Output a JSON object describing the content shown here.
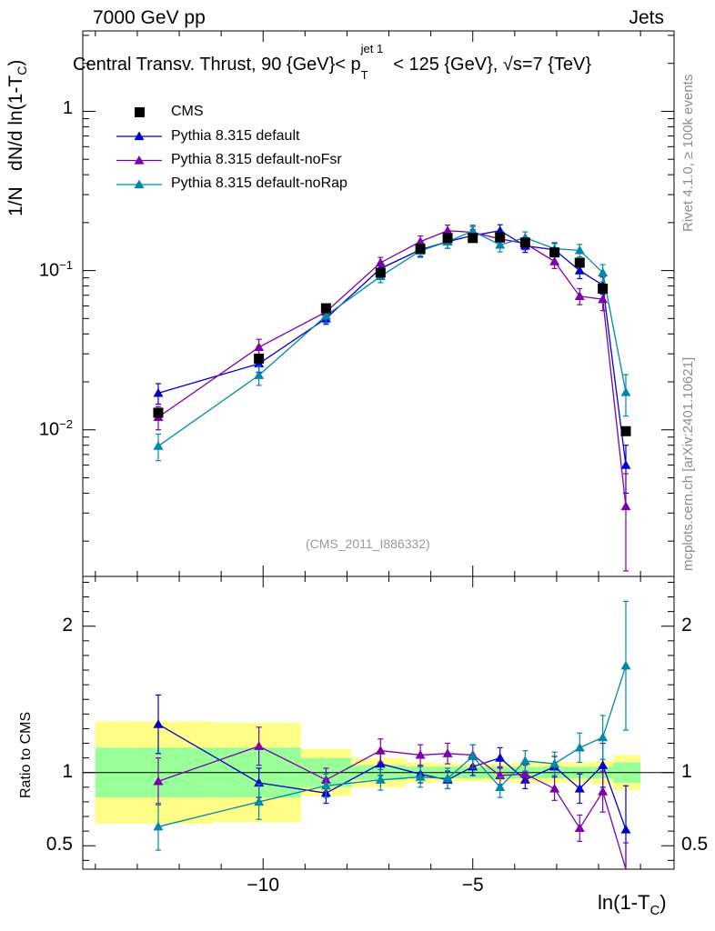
{
  "header": {
    "left": "7000 GeV pp",
    "right": "Jets"
  },
  "title": {
    "main_prefix": "Central Transv. Thrust, 90 {GeV}< p",
    "sub": "T",
    "sup": "jet 1",
    "main_suffix": " < 125 {GeV}, √s=7 {TeV}"
  },
  "side_labels": {
    "rivet": "Rivet 4.1.0, ≥ 100k events",
    "mcplots": "mcplots.cern.ch [arXiv:2401.10621]"
  },
  "analysis_tag": "(CMS_2011_I886332)",
  "colors": {
    "cms": "#000000",
    "default": "#0000cc",
    "noFsr": "#7f00aa",
    "noRap": "#0088aa",
    "band_inner": "#99ff99",
    "band_outer": "#ffff88"
  },
  "chart_data": {
    "type": "line",
    "title": "Central Transv. Thrust, 90 {GeV}< p_T^{jet 1} < 125 {GeV}, √s=7 {TeV}",
    "xlabel": "ln(1-T_C)",
    "ylabel": "1/N   dN/d ln(1-T_C)",
    "ratio_ylabel": "Ratio to CMS",
    "xlim": [
      -14.3,
      -0.2
    ],
    "ylim": [
      0.0012,
      3.2
    ],
    "yscale": "log",
    "ratio_ylim": [
      0.34,
      2.34
    ],
    "x_ticks": [
      "−10",
      "−5"
    ],
    "y_ticks": [
      "10^{-2}",
      "10^{-1}",
      "1"
    ],
    "ratio_ticks": [
      "0.5",
      "1",
      "2"
    ],
    "legend": [
      "CMS",
      "Pythia 8.315 default",
      "Pythia 8.315 default-noFsr",
      "Pythia 8.315 default-noRap"
    ],
    "x": [
      -12.5,
      -10.1,
      -8.5,
      -7.2,
      -6.25,
      -5.6,
      -5.0,
      -4.35,
      -3.75,
      -3.05,
      -2.45,
      -1.9,
      -1.35
    ],
    "bin_edges": [
      -14.0,
      -11.2,
      -9.1,
      -7.9,
      -6.6,
      -5.9,
      -5.3,
      -4.7,
      -4.05,
      -3.45,
      -2.75,
      -2.15,
      -1.65,
      -1.0
    ],
    "cms": {
      "name": "CMS",
      "values": [
        0.0128,
        0.028,
        0.058,
        0.097,
        0.137,
        0.16,
        0.16,
        0.162,
        0.15,
        0.13,
        0.112,
        0.077,
        0.0098
      ],
      "stat_band": [
        0.17,
        0.17,
        0.1,
        0.05,
        0.04,
        0.04,
        0.04,
        0.04,
        0.04,
        0.04,
        0.04,
        0.04,
        0.07
      ],
      "total_band": [
        0.35,
        0.34,
        0.16,
        0.1,
        0.07,
        0.06,
        0.06,
        0.06,
        0.07,
        0.07,
        0.07,
        0.08,
        0.12
      ]
    },
    "series": [
      {
        "name": "Pythia 8.315 default",
        "values": [
          0.017,
          0.026,
          0.05,
          0.103,
          0.135,
          0.152,
          0.166,
          0.178,
          0.143,
          0.135,
          0.1,
          0.081,
          0.006
        ],
        "errors": [
          0.0025,
          0.003,
          0.004,
          0.009,
          0.012,
          0.014,
          0.015,
          0.016,
          0.013,
          0.013,
          0.011,
          0.01,
          0.002
        ],
        "ratio": [
          1.33,
          0.93,
          0.86,
          1.06,
          0.99,
          0.95,
          1.04,
          1.1,
          0.95,
          1.04,
          0.89,
          1.05,
          0.61
        ],
        "ratio_errors": [
          0.2,
          0.1,
          0.07,
          0.08,
          0.06,
          0.06,
          0.06,
          0.07,
          0.06,
          0.07,
          0.1,
          0.15,
          0.3
        ]
      },
      {
        "name": "Pythia 8.315 default-noFsr",
        "values": [
          0.012,
          0.033,
          0.055,
          0.112,
          0.152,
          0.178,
          0.174,
          0.158,
          0.148,
          0.114,
          0.069,
          0.066,
          0.0033
        ],
        "errors": [
          0.002,
          0.004,
          0.005,
          0.009,
          0.013,
          0.015,
          0.015,
          0.014,
          0.013,
          0.011,
          0.008,
          0.01,
          0.002
        ],
        "ratio": [
          0.94,
          1.18,
          0.95,
          1.15,
          1.12,
          1.13,
          1.12,
          0.98,
          0.99,
          0.89,
          0.62,
          0.87,
          0.32
        ],
        "ratio_errors": [
          0.16,
          0.13,
          0.08,
          0.08,
          0.07,
          0.07,
          0.07,
          0.06,
          0.06,
          0.08,
          0.09,
          0.14,
          0.2
        ]
      },
      {
        "name": "Pythia 8.315 default-noRap",
        "values": [
          0.0079,
          0.022,
          0.052,
          0.092,
          0.133,
          0.152,
          0.177,
          0.145,
          0.161,
          0.137,
          0.134,
          0.097,
          0.0172
        ],
        "errors": [
          0.0015,
          0.003,
          0.005,
          0.008,
          0.012,
          0.014,
          0.016,
          0.014,
          0.014,
          0.013,
          0.012,
          0.012,
          0.005
        ],
        "ratio": [
          0.63,
          0.8,
          0.91,
          0.95,
          0.97,
          0.96,
          1.11,
          0.9,
          1.08,
          1.06,
          1.17,
          1.24,
          1.73
        ],
        "ratio_errors": [
          0.16,
          0.12,
          0.08,
          0.07,
          0.07,
          0.07,
          0.08,
          0.07,
          0.07,
          0.08,
          0.1,
          0.15,
          0.44
        ]
      }
    ]
  }
}
